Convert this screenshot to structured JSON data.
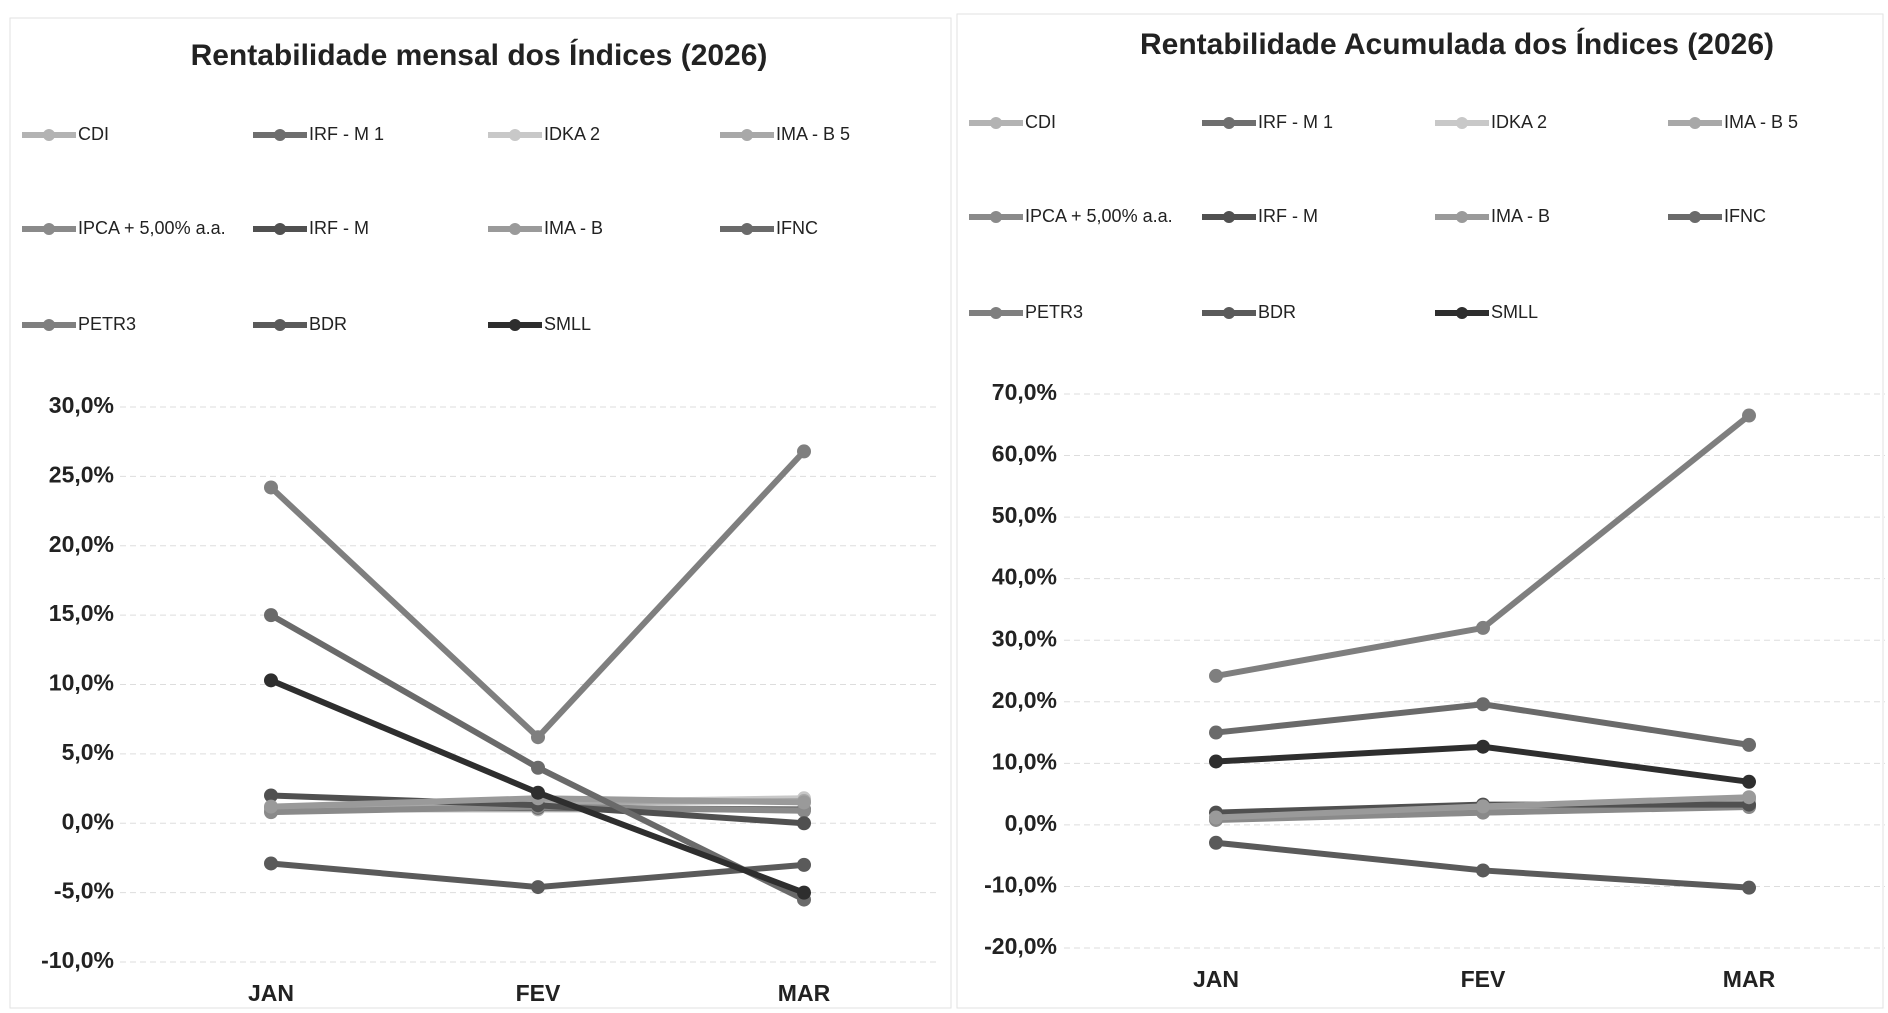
{
  "chart_data": [
    {
      "type": "line",
      "title": "Rentabilidade mensal dos Índices (2026)",
      "categories": [
        "JAN",
        "FEV",
        "MAR"
      ],
      "ylim": [
        -10,
        30
      ],
      "yticks": [
        {
          "value": -10,
          "label": "-10,0%"
        },
        {
          "value": -5,
          "label": "-5,0%"
        },
        {
          "value": 0,
          "label": "0,0%"
        },
        {
          "value": 5,
          "label": "5,0%"
        },
        {
          "value": 10,
          "label": "10,0%"
        },
        {
          "value": 15,
          "label": "15,0%"
        },
        {
          "value": 20,
          "label": "20,0%"
        },
        {
          "value": 25,
          "label": "25,0%"
        },
        {
          "value": 30,
          "label": "30,0%"
        }
      ],
      "grid": true,
      "series": [
        {
          "name": "CDI",
          "color": "#b3b3b3",
          "values": [
            1.0,
            1.0,
            1.0
          ]
        },
        {
          "name": "IRF - M 1",
          "color": "#6e6e6e",
          "values": [
            1.1,
            1.1,
            1.0
          ]
        },
        {
          "name": "IDKA 2",
          "color": "#c8c8c8",
          "values": [
            0.9,
            1.5,
            1.8
          ]
        },
        {
          "name": "IMA - B 5",
          "color": "#a8a8a8",
          "values": [
            1.0,
            1.5,
            1.6
          ]
        },
        {
          "name": "IPCA + 5,00% a.a.",
          "color": "#8a8a8a",
          "values": [
            0.8,
            1.2,
            0.9
          ]
        },
        {
          "name": "IRF - M",
          "color": "#505050",
          "values": [
            2.0,
            1.3,
            0.0
          ]
        },
        {
          "name": "IMA - B",
          "color": "#9a9a9a",
          "values": [
            1.2,
            1.8,
            1.5
          ]
        },
        {
          "name": "IFNC",
          "color": "#6a6a6a",
          "values": [
            15.0,
            4.0,
            -5.5
          ]
        },
        {
          "name": "PETR3",
          "color": "#7f7f7f",
          "values": [
            24.2,
            6.2,
            26.8
          ]
        },
        {
          "name": "BDR",
          "color": "#5a5a5a",
          "values": [
            -2.9,
            -4.6,
            -3.0
          ]
        },
        {
          "name": "SMLL",
          "color": "#2e2e2e",
          "values": [
            10.3,
            2.2,
            -5.0
          ]
        }
      ]
    },
    {
      "type": "line",
      "title": "Rentabilidade Acumulada dos Índices (2026)",
      "categories": [
        "JAN",
        "FEV",
        "MAR"
      ],
      "ylim": [
        -20,
        70
      ],
      "yticks": [
        {
          "value": -20,
          "label": "-20,0%"
        },
        {
          "value": -10,
          "label": "-10,0%"
        },
        {
          "value": 0,
          "label": "0,0%"
        },
        {
          "value": 10,
          "label": "10,0%"
        },
        {
          "value": 20,
          "label": "20,0%"
        },
        {
          "value": 30,
          "label": "30,0%"
        },
        {
          "value": 40,
          "label": "40,0%"
        },
        {
          "value": 50,
          "label": "50,0%"
        },
        {
          "value": 60,
          "label": "60,0%"
        },
        {
          "value": 70,
          "label": "70,0%"
        }
      ],
      "grid": true,
      "series": [
        {
          "name": "CDI",
          "color": "#b3b3b3",
          "values": [
            1.0,
            2.0,
            3.0
          ]
        },
        {
          "name": "IRF - M 1",
          "color": "#6e6e6e",
          "values": [
            1.1,
            2.2,
            3.2
          ]
        },
        {
          "name": "IDKA 2",
          "color": "#c8c8c8",
          "values": [
            0.9,
            2.4,
            4.2
          ]
        },
        {
          "name": "IMA - B 5",
          "color": "#a8a8a8",
          "values": [
            1.0,
            2.5,
            4.1
          ]
        },
        {
          "name": "IPCA + 5,00% a.a.",
          "color": "#8a8a8a",
          "values": [
            0.8,
            2.0,
            2.9
          ]
        },
        {
          "name": "IRF - M",
          "color": "#505050",
          "values": [
            2.0,
            3.3,
            3.3
          ]
        },
        {
          "name": "IMA - B",
          "color": "#9a9a9a",
          "values": [
            1.2,
            3.0,
            4.5
          ]
        },
        {
          "name": "IFNC",
          "color": "#6a6a6a",
          "values": [
            15.0,
            19.6,
            13.0
          ]
        },
        {
          "name": "PETR3",
          "color": "#7f7f7f",
          "values": [
            24.2,
            32.0,
            66.5
          ]
        },
        {
          "name": "BDR",
          "color": "#5a5a5a",
          "values": [
            -2.9,
            -7.4,
            -10.2
          ]
        },
        {
          "name": "SMLL",
          "color": "#2e2e2e",
          "values": [
            10.3,
            12.7,
            7.0
          ]
        }
      ]
    }
  ]
}
